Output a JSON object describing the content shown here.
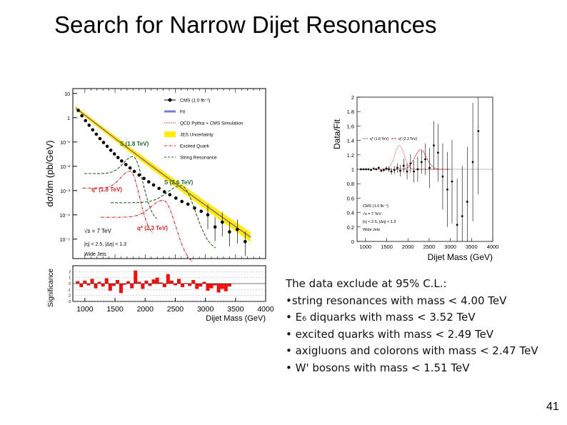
{
  "slide": {
    "title": "Search for Narrow Dijet Resonances",
    "page_number": "41"
  },
  "colors": {
    "data_points": "#000000",
    "fit_line": "#7b7bd6",
    "qcd_line": "#cc2222",
    "jes_band": "#ffee00",
    "excited_quark": "#cc2222",
    "string_resonance": "#226622",
    "significance_bars": "#ee1111"
  },
  "chart_data": [
    {
      "id": "mass_spectrum",
      "type": "scatter",
      "ylabel": "dσ/dm (pb/GeV)",
      "xlabel": "Dijet Mass (GeV)",
      "xlim": [
        800,
        4000
      ],
      "ylim_log10": [
        -5.8,
        1.2
      ],
      "y_tick_labels": [
        "10",
        "1",
        "10⁻¹",
        "10⁻²",
        "10⁻³",
        "10⁻⁴",
        "10⁻⁵"
      ],
      "x_tick_labels": [
        "1000",
        "1500",
        "2000",
        "2500",
        "3000",
        "3500",
        "4000"
      ],
      "legend": [
        {
          "label": "CMS (1.0 fb⁻¹)",
          "style": "points"
        },
        {
          "label": "Fit",
          "style": "line"
        },
        {
          "label": "QCD Pythia + CMS Simulation",
          "style": "dotted"
        },
        {
          "label": "JES Uncertainty",
          "style": "band"
        },
        {
          "label": "Excited Quark",
          "style": "dashdot"
        },
        {
          "label": "String Resonance",
          "style": "dashed"
        }
      ],
      "annotations": [
        "S (1.8 TeV)",
        "q* (1.8 TeV)",
        "S (2.6 TeV)",
        "q* (2.3 TeV)"
      ],
      "info_text": [
        "√s = 7 TeV",
        "|η| < 2.5, |Δη| < 1.3",
        "Wide Jets"
      ],
      "data": {
        "x": [
          890,
          950,
          1010,
          1070,
          1130,
          1190,
          1250,
          1310,
          1370,
          1430,
          1490,
          1550,
          1610,
          1680,
          1750,
          1820,
          1900,
          1980,
          2060,
          2140,
          2230,
          2320,
          2410,
          2510,
          2610,
          2710,
          2820,
          2930,
          3040,
          3160,
          3280,
          3400,
          3530,
          3660
        ],
        "log10_y": [
          0.3,
          0.08,
          -0.12,
          -0.31,
          -0.5,
          -0.68,
          -0.86,
          -1.02,
          -1.18,
          -1.34,
          -1.49,
          -1.64,
          -1.78,
          -1.93,
          -2.07,
          -2.21,
          -2.36,
          -2.5,
          -2.64,
          -2.77,
          -2.91,
          -3.05,
          -3.17,
          -3.31,
          -3.45,
          -3.56,
          -3.72,
          -3.85,
          -4.0,
          -4.5,
          -4.3,
          -4.7,
          -4.6,
          -5.1
        ]
      },
      "signals": [
        {
          "name": "S (1.8 TeV)",
          "peak_x": 1800,
          "peak_log10_y": -1.6,
          "style": "string"
        },
        {
          "name": "q* (1.8 TeV)",
          "peak_x": 1750,
          "peak_log10_y": -2.2,
          "style": "qstar"
        },
        {
          "name": "S (2.6 TeV)",
          "peak_x": 2600,
          "peak_log10_y": -2.8,
          "style": "string"
        },
        {
          "name": "q* (2.3 TeV)",
          "peak_x": 2300,
          "peak_log10_y": -3.4,
          "style": "qstar"
        }
      ]
    },
    {
      "id": "significance",
      "type": "bar",
      "ylabel": "Significance",
      "xlabel": "Dijet Mass (GeV)",
      "ylim": [
        -3,
        3
      ],
      "y_tick_labels": [
        "2",
        "1",
        "0",
        "-1",
        "-2",
        "-3"
      ],
      "x_tick_labels": [
        "1000",
        "1500",
        "2000",
        "2500",
        "3000",
        "3500",
        "4000"
      ],
      "bins": [
        850,
        910,
        970,
        1030,
        1090,
        1150,
        1210,
        1270,
        1330,
        1390,
        1450,
        1510,
        1570,
        1630,
        1690,
        1750,
        1810,
        1870,
        1930,
        1990,
        2050,
        2110,
        2170,
        2230,
        2290,
        2350,
        2410,
        2470,
        2530,
        2590,
        2650,
        2710,
        2770,
        2830,
        2890,
        2950,
        3010,
        3070,
        3130,
        3190,
        3250,
        3310,
        3370
      ],
      "values": [
        0.4,
        -0.6,
        0.5,
        -0.3,
        0.8,
        -0.8,
        0.3,
        -0.5,
        0.9,
        -1.2,
        -0.4,
        0.6,
        -1.6,
        -0.2,
        0.4,
        -0.8,
        2.2,
        0.3,
        -0.9,
        0.5,
        -0.4,
        0.7,
        1.0,
        0.2,
        -0.6,
        1.6,
        0.5,
        -0.3,
        0.8,
        -0.6,
        0.1,
        -0.4,
        0.6,
        -0.9,
        -0.5,
        0.3,
        -1.2,
        -0.8,
        -0.3,
        -1.5,
        -0.9,
        -1.3,
        -0.5
      ]
    },
    {
      "id": "data_over_fit",
      "type": "scatter",
      "ylabel": "Data/Fit",
      "xlabel": "Dijet Mass (GeV)",
      "xlim": [
        800,
        4000
      ],
      "ylim": [
        0,
        2
      ],
      "y_tick_labels": [
        "0",
        "0.2",
        "0.4",
        "0.6",
        "0.8",
        "1",
        "1.2",
        "1.4",
        "1.6",
        "1.8",
        "2"
      ],
      "x_tick_labels": [
        "1000",
        "1500",
        "2000",
        "2500",
        "3000",
        "3500",
        "4000"
      ],
      "legend": [
        "q* (1.8 TeV)",
        "q* (2.3 TeV)"
      ],
      "info_text": [
        "CMS (1.0 fb⁻¹)",
        "√s = 7 TeV",
        "|η| < 2.5, |Δη| < 1.3",
        "Wide Jets"
      ],
      "data": {
        "x": [
          890,
          950,
          1010,
          1070,
          1130,
          1190,
          1250,
          1310,
          1370,
          1430,
          1490,
          1550,
          1610,
          1680,
          1750,
          1820,
          1900,
          1980,
          2060,
          2140,
          2230,
          2320,
          2410,
          2510,
          2610,
          2710,
          2820,
          2930,
          3040,
          3160,
          3280,
          3400,
          3530,
          3660
        ],
        "y": [
          1.0,
          1.0,
          1.0,
          1.0,
          0.99,
          1.01,
          1.0,
          1.02,
          0.98,
          0.99,
          1.01,
          1.0,
          0.97,
          0.99,
          1.02,
          0.98,
          1.05,
          0.97,
          1.08,
          0.97,
          1.0,
          1.1,
          1.14,
          1.02,
          1.33,
          1.23,
          0.9,
          0.72,
          0.83,
          0.23,
          0.35,
          0.55,
          1.1,
          1.53
        ]
      }
    }
  ],
  "summary": {
    "heading": "The data exclude at 95% C.L.:",
    "items": [
      "•string resonances with mass <  4.00 TeV",
      "• E₆ diquarks with mass < 3.52 TeV",
      "• excited quarks with mass < 2.49 TeV",
      "• axigluons and colorons with mass < 2.47 TeV",
      "• W' bosons with mass  < 1.51 TeV"
    ]
  }
}
